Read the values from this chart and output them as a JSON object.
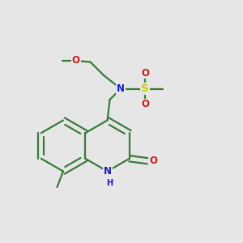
{
  "bg_color": "#e6e6e6",
  "bond_color": "#3a7a3a",
  "bond_width": 1.6,
  "dbo": 0.012,
  "atom_colors": {
    "N": "#1a1acc",
    "O": "#cc1a1a",
    "S": "#cccc00",
    "H": "#1a1acc"
  },
  "fs": 8.5,
  "fs_small": 7.0
}
